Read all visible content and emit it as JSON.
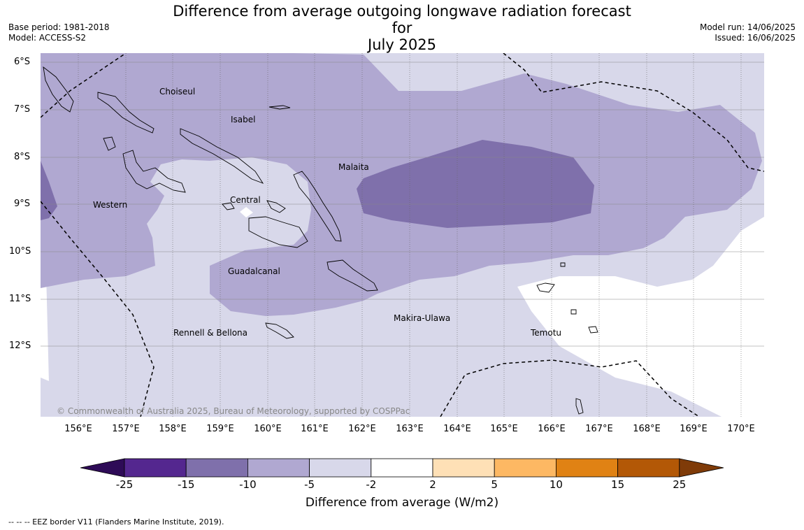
{
  "title_line1": "Difference from average outgoing longwave radiation forecast for",
  "title_line2": "July 2025",
  "meta_left": {
    "base_period": "Base period: 1981-2018",
    "model": "Model: ACCESS-S2"
  },
  "meta_right": {
    "model_run": "Model run: 14/06/2025",
    "issued": "Issued: 16/06/2025"
  },
  "map": {
    "lat_labels": [
      "6°S",
      "7°S",
      "8°S",
      "9°S",
      "10°S",
      "11°S",
      "12°S"
    ],
    "lon_labels": [
      "156°E",
      "157°E",
      "158°E",
      "159°E",
      "160°E",
      "161°E",
      "162°E",
      "163°E",
      "164°E",
      "165°E",
      "166°E",
      "167°E",
      "168°E",
      "169°E",
      "170°E"
    ],
    "regions": {
      "choiseul": "Choiseul",
      "isabel": "Isabel",
      "malaita": "Malaita",
      "western": "Western",
      "central": "Central",
      "guadalcanal": "Guadalcanal",
      "makira_ulawa": "Makira-Ulawa",
      "temotu": "Temotu",
      "rennell_bellona": "Rennell & Bellona"
    },
    "copyright": "© Commonwealth of Australia 2025, Bureau of Meteorology, supported by COSPPac",
    "colors": {
      "lt_minus15": "#7f70ab",
      "minus15_to_minus10": "#7f70ab",
      "minus10_to_minus5": "#b0a8d1",
      "minus5_to_minus2": "#d8d8ea",
      "minus2_to_2": "#ffffff"
    }
  },
  "colorbar": {
    "ticks": [
      "-25",
      "-15",
      "-10",
      "-5",
      "-2",
      "2",
      "5",
      "10",
      "15",
      "25"
    ],
    "colors": [
      "#2e0b57",
      "#54278f",
      "#7f70ab",
      "#b0a8d1",
      "#d8d8ea",
      "#ffffff",
      "#fee0b6",
      "#fdb863",
      "#e08214",
      "#b35806",
      "#7f3b08"
    ],
    "label": "Difference from average (W/m2)"
  },
  "footnote": "--  --  -- EEZ border V11 (Flanders Marine Institute, 2019)."
}
